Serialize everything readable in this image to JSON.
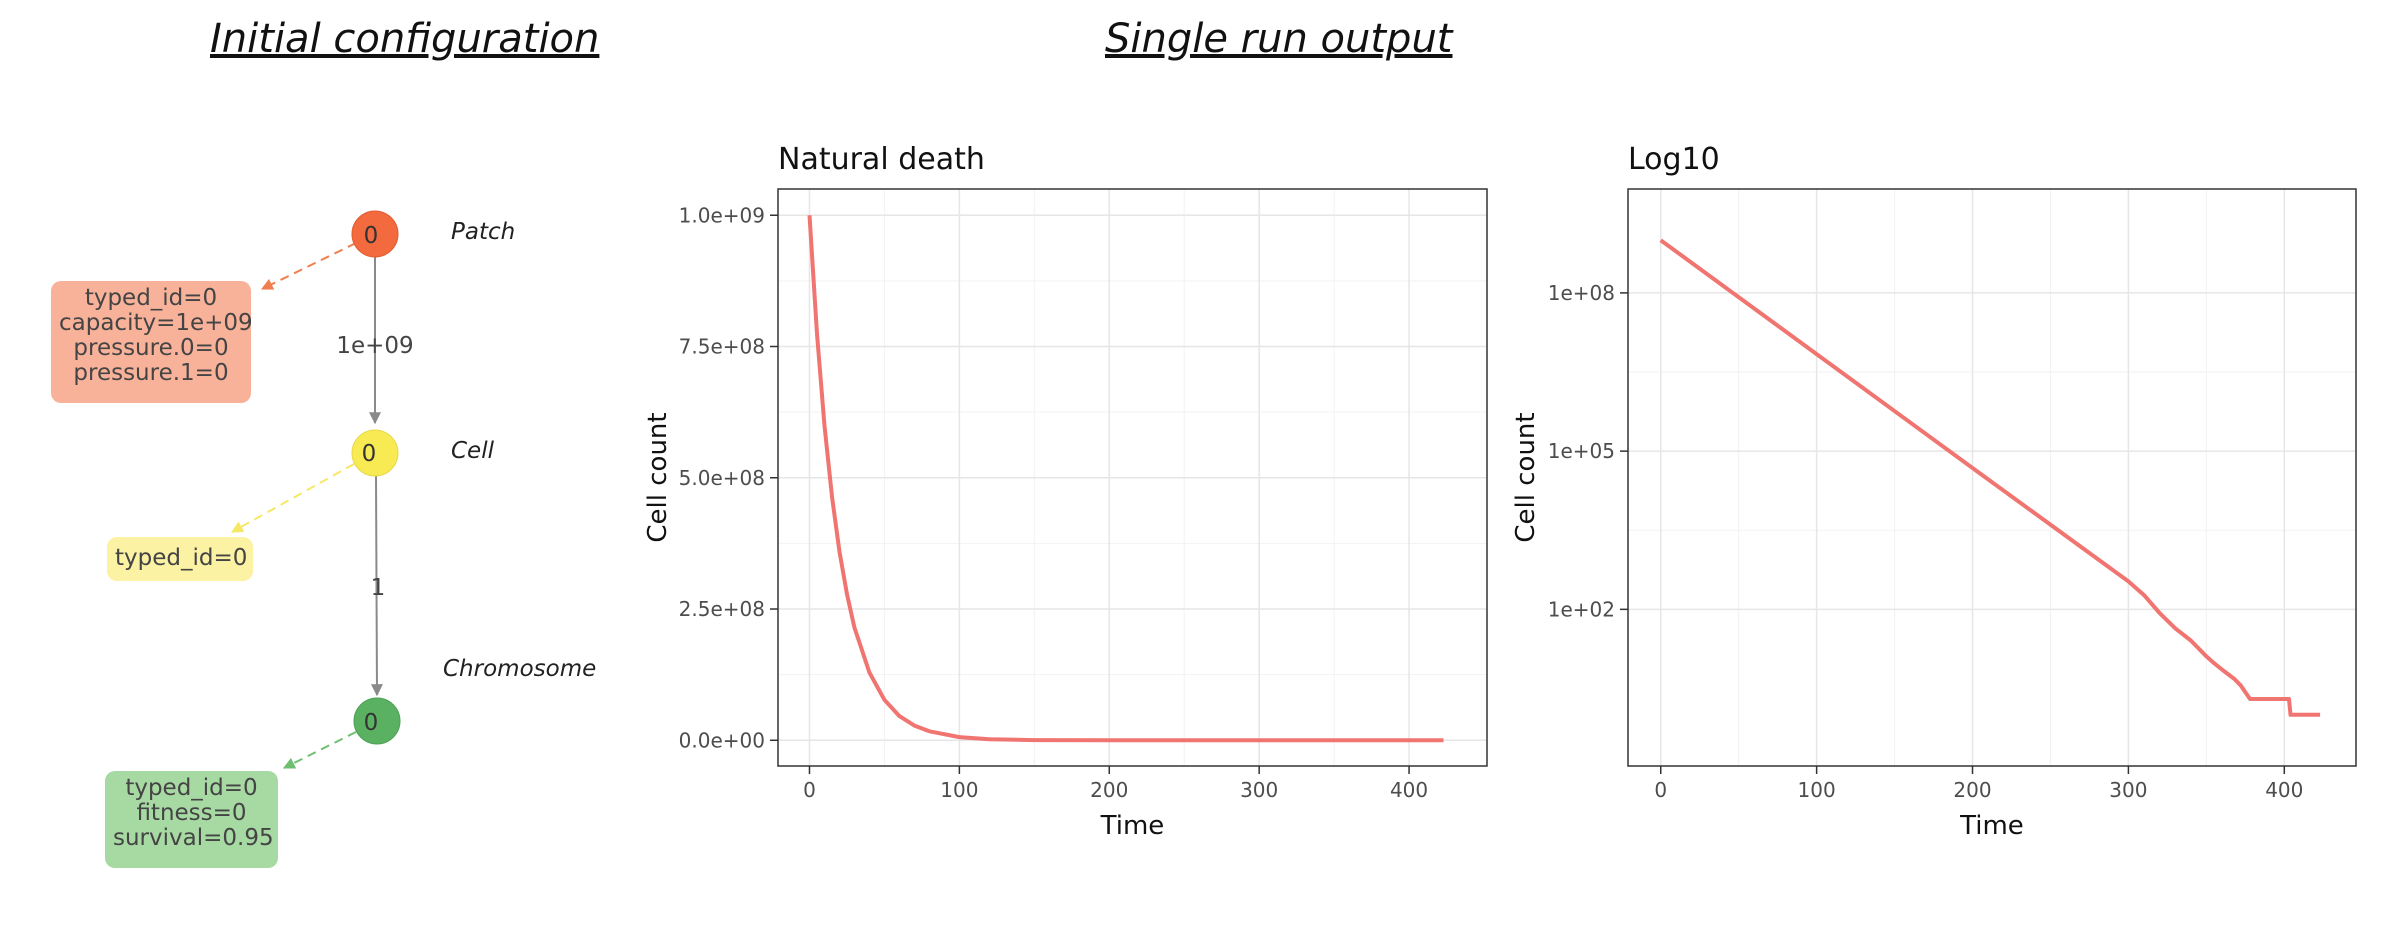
{
  "headings": {
    "left": "Initial configuration",
    "right": "Single run output"
  },
  "diagram": {
    "nodes": [
      {
        "id": "patch",
        "index_label": "0",
        "type_label": "Patch",
        "color": "#f26a3d",
        "box_color": "#f9b29a",
        "attributes": [
          "typed_id=0",
          "capacity=1e+09",
          "pressure.0=0",
          "pressure.1=0"
        ],
        "edge_color": "#f07f4e"
      },
      {
        "id": "cell",
        "index_label": "0",
        "type_label": "Cell",
        "color": "#f8ea52",
        "box_color": "#fbf2a3",
        "attributes": [
          "typed_id=0"
        ],
        "edge_color": "#f6e866"
      },
      {
        "id": "chromosome",
        "index_label": "0",
        "type_label": "Chromosome",
        "color": "#5ab162",
        "box_color": "#a7d9a3",
        "attributes": [
          "typed_id=0",
          "fitness=0",
          "survival=0.95"
        ],
        "edge_color": "#6fbf73"
      }
    ],
    "edges": [
      {
        "from": "patch",
        "to": "cell",
        "label": "1e+09"
      },
      {
        "from": "cell",
        "to": "chromosome",
        "label": "1"
      }
    ],
    "edge_color": "#8a8a8a"
  },
  "chart_data": [
    {
      "type": "line",
      "title": "Natural death",
      "xlabel": "Time",
      "ylabel": "Cell count",
      "xlim": [
        -21,
        452
      ],
      "ylim": [
        -49000000.0,
        1050000000.0
      ],
      "xticks": [
        0,
        100,
        200,
        300,
        400
      ],
      "xtick_labels": [
        "0",
        "100",
        "200",
        "300",
        "400"
      ],
      "yticks": [
        0,
        250000000,
        500000000,
        750000000,
        1000000000
      ],
      "ytick_labels": [
        "0.0e+00",
        "2.5e+08",
        "5.0e+08",
        "7.5e+08",
        "1.0e+09"
      ],
      "grid": true,
      "color": "#f07470",
      "series": [
        {
          "x": [
            0,
            5,
            10,
            15,
            20,
            25,
            30,
            40,
            50,
            60,
            70,
            80,
            100,
            120,
            150,
            200,
            300,
            400,
            423
          ],
          "y": [
            1000000000,
            774000000,
            599000000,
            464000000,
            359000000,
            278000000,
            215000000,
            129000000,
            77000000,
            46000000,
            28000000,
            17000000,
            6000000,
            2000000,
            400000,
            0,
            0,
            0,
            0
          ]
        }
      ]
    },
    {
      "type": "line",
      "title": "Log10",
      "xlabel": "Time",
      "ylabel": "Cell count",
      "log_y": true,
      "xlim": [
        -21,
        446
      ],
      "ylim_log10": [
        -0.97,
        9.97
      ],
      "xticks": [
        0,
        100,
        200,
        300,
        400
      ],
      "xtick_labels": [
        "0",
        "100",
        "200",
        "300",
        "400"
      ],
      "yticks_log10": [
        2,
        5,
        8
      ],
      "ytick_labels": [
        "1e+02",
        "1e+05",
        "1e+08"
      ],
      "grid": true,
      "color": "#f07470",
      "series": [
        {
          "x": [
            0,
            100,
            200,
            300,
            310,
            320,
            330,
            340,
            350,
            355,
            360,
            368,
            372,
            378,
            383,
            395,
            400,
            403,
            404,
            415,
            423
          ],
          "log10_y": [
            9.0,
            6.84,
            4.68,
            2.53,
            2.27,
            1.93,
            1.64,
            1.41,
            1.11,
            0.98,
            0.86,
            0.68,
            0.56,
            0.3,
            0.3,
            0.3,
            0.3,
            0.3,
            0.0,
            0.0,
            0.0
          ]
        }
      ]
    }
  ]
}
